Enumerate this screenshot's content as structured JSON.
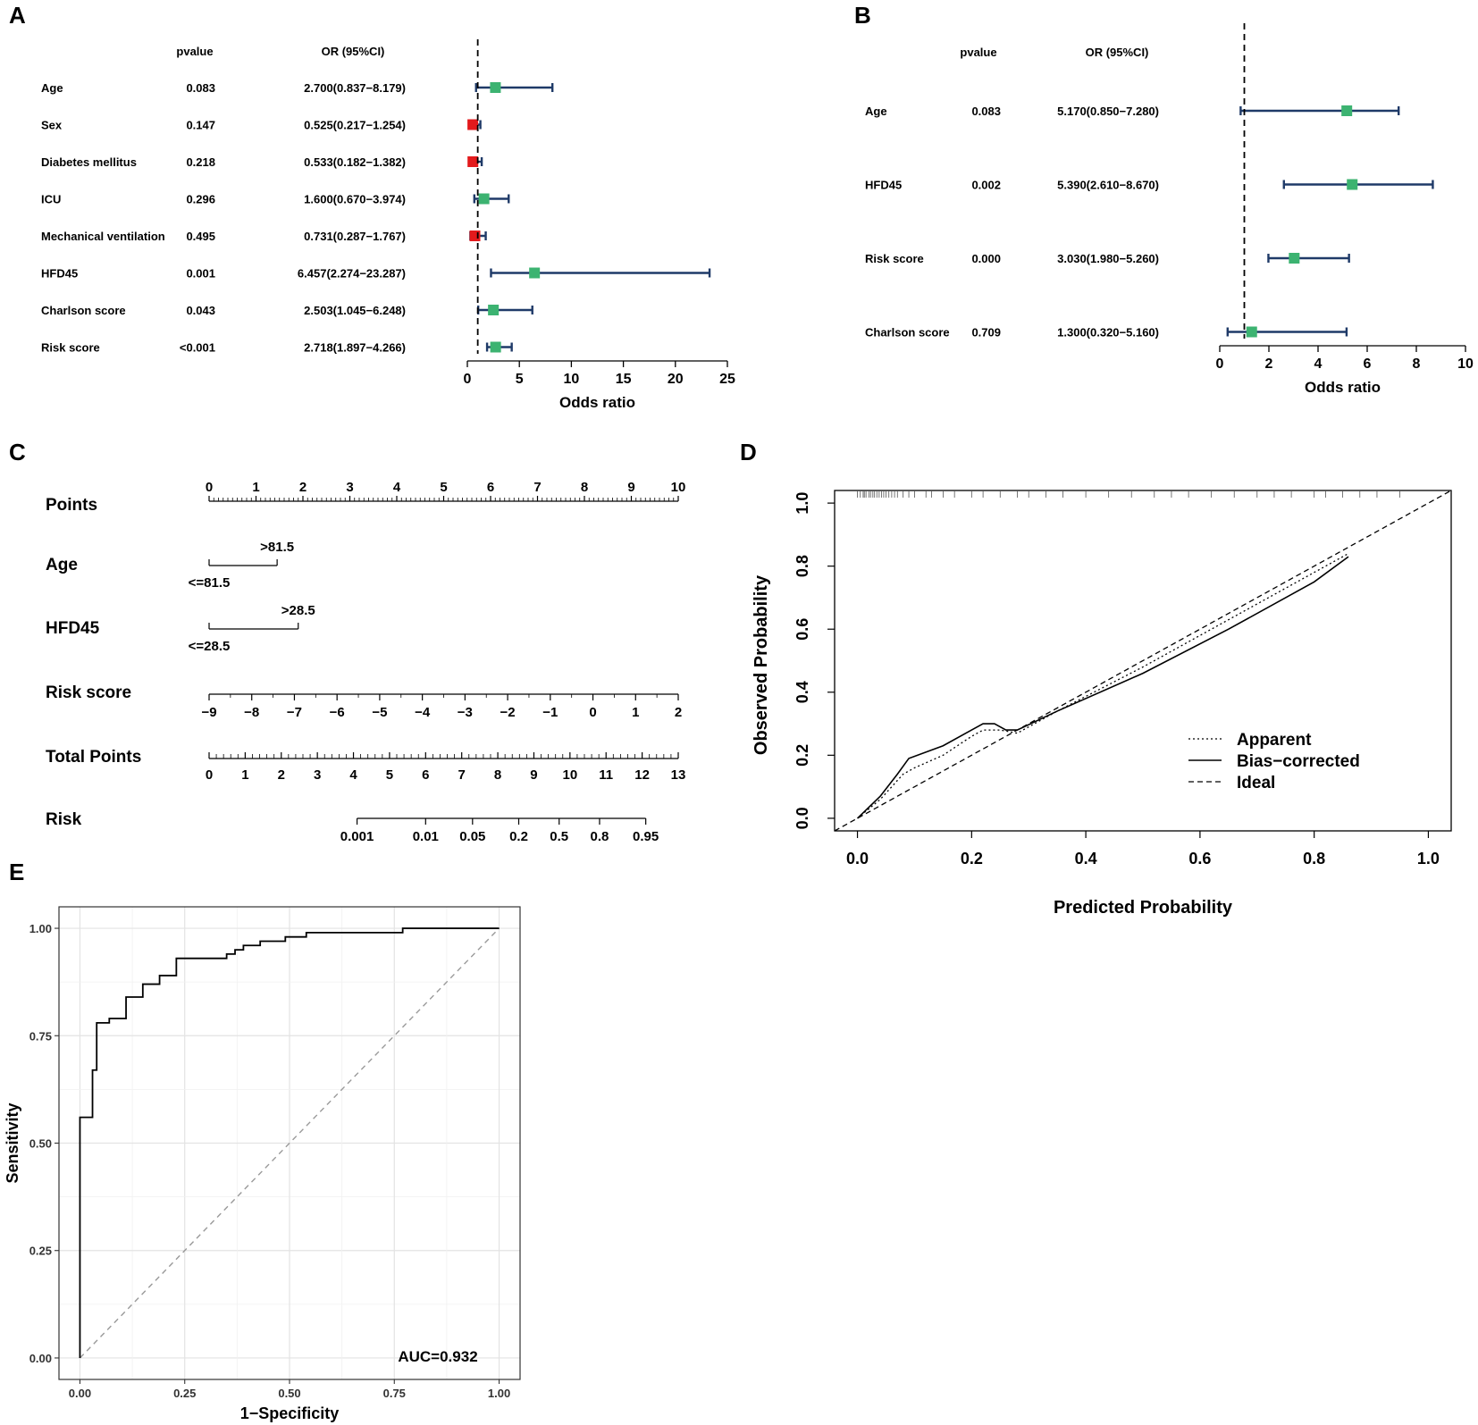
{
  "chart_data": [
    {
      "panel": "A",
      "type": "forest",
      "col_headers": {
        "pvalue": "pvalue",
        "or": "OR (95%CI)"
      },
      "xlabel": "Odds ratio",
      "xlim": [
        0,
        25
      ],
      "xticks": [
        0,
        5,
        10,
        15,
        20,
        25
      ],
      "reference_line": 1,
      "rows": [
        {
          "label": "Age",
          "pvalue": "0.083",
          "or_text": "2.700(0.837−8.179)",
          "or": 2.7,
          "lo": 0.837,
          "hi": 8.179
        },
        {
          "label": "Sex",
          "pvalue": "0.147",
          "or_text": "0.525(0.217−1.254)",
          "or": 0.525,
          "lo": 0.217,
          "hi": 1.254
        },
        {
          "label": "Diabetes mellitus",
          "pvalue": "0.218",
          "or_text": "0.533(0.182−1.382)",
          "or": 0.533,
          "lo": 0.182,
          "hi": 1.382
        },
        {
          "label": "ICU",
          "pvalue": "0.296",
          "or_text": "1.600(0.670−3.974)",
          "or": 1.6,
          "lo": 0.67,
          "hi": 3.974
        },
        {
          "label": "Mechanical ventilation",
          "pvalue": "0.495",
          "or_text": "0.731(0.287−1.767)",
          "or": 0.731,
          "lo": 0.287,
          "hi": 1.767
        },
        {
          "label": "HFD45",
          "pvalue": "0.001",
          "or_text": "6.457(2.274−23.287)",
          "or": 6.457,
          "lo": 2.274,
          "hi": 23.287
        },
        {
          "label": "Charlson score",
          "pvalue": "0.043",
          "or_text": "2.503(1.045−6.248)",
          "or": 2.503,
          "lo": 1.045,
          "hi": 6.248
        },
        {
          "label": "Risk score",
          "pvalue": "<0.001",
          "or_text": "2.718(1.897−4.266)",
          "or": 2.718,
          "lo": 1.897,
          "hi": 4.266
        }
      ],
      "colors": {
        "risk": "#3cb371",
        "protective": "#e31a1c",
        "ci": "#1f3a68"
      }
    },
    {
      "panel": "B",
      "type": "forest",
      "col_headers": {
        "pvalue": "pvalue",
        "or": "OR (95%CI)"
      },
      "xlabel": "Odds ratio",
      "xlim": [
        0,
        10
      ],
      "xticks": [
        0,
        2,
        4,
        6,
        8,
        10
      ],
      "reference_line": 1,
      "rows": [
        {
          "label": "Age",
          "pvalue": "0.083",
          "or_text": "5.170(0.850−7.280)",
          "or": 5.17,
          "lo": 0.85,
          "hi": 7.28
        },
        {
          "label": "HFD45",
          "pvalue": "0.002",
          "or_text": "5.390(2.610−8.670)",
          "or": 5.39,
          "lo": 2.61,
          "hi": 8.67
        },
        {
          "label": "Risk score",
          "pvalue": "0.000",
          "or_text": "3.030(1.980−5.260)",
          "or": 3.03,
          "lo": 1.98,
          "hi": 5.26
        },
        {
          "label": "Charlson score",
          "pvalue": "0.709",
          "or_text": "1.300(0.320−5.160)",
          "or": 1.3,
          "lo": 0.32,
          "hi": 5.16
        }
      ]
    },
    {
      "panel": "C",
      "type": "nomogram",
      "points": {
        "label": "Points",
        "ticks": [
          "0",
          "1",
          "2",
          "3",
          "4",
          "5",
          "6",
          "7",
          "8",
          "9",
          "10"
        ]
      },
      "age": {
        "label": "Age",
        "high": ">81.5",
        "low": "<=81.5",
        "high_points": 1.45
      },
      "hfd45": {
        "label": "HFD45",
        "high": ">28.5",
        "low": "<=28.5",
        "high_points": 1.9
      },
      "risk_score": {
        "label": "Risk score",
        "ticks": [
          "−9",
          "−8",
          "−7",
          "−6",
          "−5",
          "−4",
          "−3",
          "−2",
          "−1",
          "0",
          "1",
          "2"
        ]
      },
      "total_points": {
        "label": "Total Points",
        "ticks": [
          "0",
          "1",
          "2",
          "3",
          "4",
          "5",
          "6",
          "7",
          "8",
          "9",
          "10",
          "11",
          "12",
          "13"
        ]
      },
      "risk": {
        "label": "Risk",
        "ticks": [
          {
            "label": "0.001",
            "points": 4.1
          },
          {
            "label": "0.01",
            "points": 6.0
          },
          {
            "label": "0.05",
            "points": 7.3
          },
          {
            "label": "0.2",
            "points": 8.58
          },
          {
            "label": "0.5",
            "points": 9.7
          },
          {
            "label": "0.8",
            "points": 10.82
          },
          {
            "label": "0.95",
            "points": 12.1
          }
        ]
      }
    },
    {
      "panel": "D",
      "type": "line",
      "xlabel": "Predicted Probability",
      "ylabel": "Observed Probability",
      "xlim": [
        -0.04,
        1.04
      ],
      "ylim": [
        -0.04,
        1.04
      ],
      "xticks": [
        "0.0",
        "0.2",
        "0.4",
        "0.6",
        "0.8",
        "1.0"
      ],
      "yticks": [
        "0.0",
        "0.2",
        "0.4",
        "0.6",
        "0.8",
        "1.0"
      ],
      "legend": [
        "Apparent",
        "Bias−corrected",
        "Ideal"
      ],
      "series": [
        {
          "name": "Apparent",
          "x": [
            0.0,
            0.04,
            0.08,
            0.1,
            0.15,
            0.2,
            0.22,
            0.25,
            0.28,
            0.35,
            0.5,
            0.65,
            0.8,
            0.86
          ],
          "y": [
            0.0,
            0.06,
            0.14,
            0.16,
            0.2,
            0.26,
            0.28,
            0.28,
            0.27,
            0.34,
            0.48,
            0.63,
            0.78,
            0.84
          ]
        },
        {
          "name": "Bias−corrected",
          "x": [
            0.0,
            0.04,
            0.07,
            0.09,
            0.15,
            0.2,
            0.22,
            0.24,
            0.26,
            0.28,
            0.35,
            0.5,
            0.65,
            0.8,
            0.86
          ],
          "y": [
            0.0,
            0.07,
            0.14,
            0.19,
            0.23,
            0.28,
            0.3,
            0.3,
            0.28,
            0.28,
            0.34,
            0.46,
            0.6,
            0.75,
            0.83
          ]
        },
        {
          "name": "Ideal",
          "x": [
            -0.04,
            1.04
          ],
          "y": [
            -0.04,
            1.04
          ]
        }
      ],
      "rug": [
        0.0,
        0.005,
        0.01,
        0.012,
        0.015,
        0.02,
        0.023,
        0.027,
        0.03,
        0.034,
        0.038,
        0.042,
        0.046,
        0.05,
        0.055,
        0.06,
        0.065,
        0.07,
        0.08,
        0.09,
        0.1,
        0.12,
        0.13,
        0.15,
        0.17,
        0.2,
        0.22,
        0.25,
        0.28,
        0.3,
        0.33,
        0.36,
        0.4,
        0.44,
        0.48,
        0.52,
        0.55,
        0.58,
        0.62,
        0.66,
        0.7,
        0.73,
        0.76,
        0.8,
        0.82,
        0.85,
        0.88,
        0.91,
        0.95
      ]
    },
    {
      "panel": "E",
      "type": "line",
      "xlabel": "1−Specificity",
      "ylabel": "Sensitivity",
      "xlim": [
        -0.05,
        1.05
      ],
      "ylim": [
        -0.05,
        1.05
      ],
      "xticks": [
        "0.00",
        "0.25",
        "0.50",
        "0.75",
        "1.00"
      ],
      "yticks": [
        "0.00",
        "0.25",
        "0.50",
        "0.75",
        "1.00"
      ],
      "annotation": "AUC=0.932",
      "roc": {
        "x": [
          0,
          0,
          0.03,
          0.03,
          0.04,
          0.04,
          0.07,
          0.07,
          0.11,
          0.11,
          0.15,
          0.15,
          0.19,
          0.19,
          0.23,
          0.23,
          0.35,
          0.35,
          0.37,
          0.37,
          0.39,
          0.39,
          0.43,
          0.43,
          0.49,
          0.49,
          0.54,
          0.54,
          0.61,
          0.61,
          0.77,
          0.77,
          1.0
        ],
        "y": [
          0,
          0.56,
          0.56,
          0.67,
          0.67,
          0.78,
          0.78,
          0.79,
          0.79,
          0.84,
          0.84,
          0.87,
          0.87,
          0.89,
          0.89,
          0.93,
          0.93,
          0.94,
          0.94,
          0.95,
          0.95,
          0.96,
          0.96,
          0.97,
          0.97,
          0.98,
          0.98,
          0.99,
          0.99,
          0.99,
          0.99,
          1.0,
          1.0
        ]
      }
    }
  ],
  "panel_labels": [
    "A",
    "B",
    "C",
    "D",
    "E"
  ]
}
